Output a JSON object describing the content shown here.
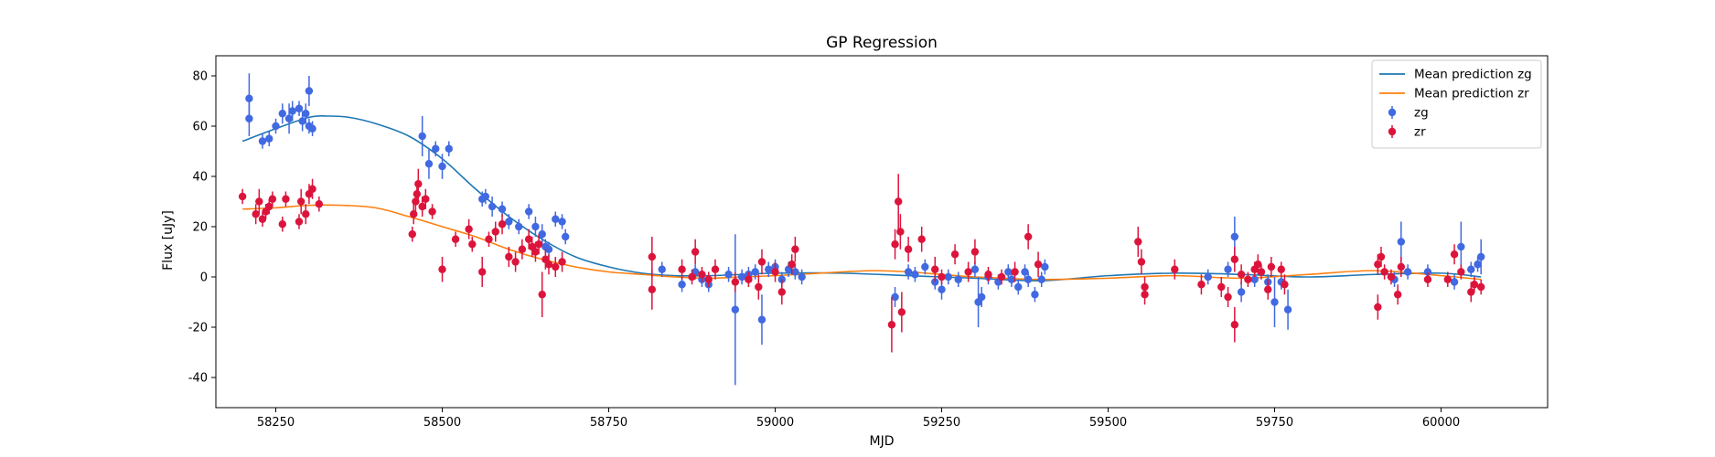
{
  "chart_data": {
    "type": "scatter",
    "title": "GP Regression",
    "xlabel": "MJD",
    "ylabel": "Flux [uJy]",
    "xlim": [
      58160,
      60160
    ],
    "ylim": [
      -52,
      88
    ],
    "xticks": [
      58250,
      58500,
      58750,
      59000,
      59250,
      59500,
      59750,
      60000
    ],
    "yticks": [
      -40,
      -20,
      0,
      20,
      40,
      60,
      80
    ],
    "grid": false,
    "legend_position": "top-right",
    "colors": {
      "mean_zg": "#1f77b4",
      "mean_zr": "#ff7f0e",
      "zg": "#4169e1",
      "zr": "#dc143c"
    },
    "legend": [
      {
        "label": "Mean prediction zg",
        "kind": "line",
        "color": "#1f77b4"
      },
      {
        "label": "Mean prediction zr",
        "kind": "line",
        "color": "#ff7f0e"
      },
      {
        "label": "zg",
        "kind": "errorbar",
        "color": "#4169e1"
      },
      {
        "label": "zr",
        "kind": "errorbar",
        "color": "#dc143c"
      }
    ],
    "lines": [
      {
        "name": "Mean prediction zg",
        "color": "#1f77b4",
        "x": [
          58200,
          58250,
          58300,
          58330,
          58360,
          58400,
          58450,
          58500,
          58550,
          58600,
          58650,
          58700,
          58750,
          58800,
          58850,
          58900,
          58950,
          59000,
          59100,
          59200,
          59300,
          59400,
          59500,
          59600,
          59700,
          59800,
          59900,
          60000,
          60060
        ],
        "y": [
          54,
          59,
          63.5,
          64,
          63.5,
          61,
          56,
          47,
          35,
          24,
          15,
          8,
          4,
          1.5,
          0.5,
          0.5,
          1,
          1.5,
          1.5,
          0.5,
          -0.5,
          -1.5,
          0.5,
          1.5,
          1,
          0,
          1,
          1.5,
          0
        ]
      },
      {
        "name": "Mean prediction zr",
        "color": "#ff7f0e",
        "x": [
          58200,
          58250,
          58300,
          58350,
          58400,
          58450,
          58500,
          58550,
          58600,
          58650,
          58700,
          58750,
          58800,
          58850,
          58900,
          58950,
          59000,
          59100,
          59150,
          59200,
          59250,
          59300,
          59400,
          59500,
          59600,
          59700,
          59800,
          59900,
          60000,
          60060
        ],
        "y": [
          27,
          27.5,
          28.5,
          28.5,
          27.5,
          24,
          20,
          16,
          11,
          7,
          4,
          2,
          1,
          0,
          -0.5,
          0,
          0.5,
          2,
          2.5,
          2,
          1,
          0,
          -1,
          -0.5,
          0.5,
          -0.5,
          1,
          2.5,
          0.5,
          -1
        ]
      }
    ],
    "series": [
      {
        "name": "zg",
        "color": "#4169e1",
        "points": [
          [
            58210,
            63,
            7
          ],
          [
            58210,
            71,
            10
          ],
          [
            58230,
            54,
            3
          ],
          [
            58240,
            55,
            3
          ],
          [
            58250,
            60,
            3
          ],
          [
            58260,
            65,
            4
          ],
          [
            58270,
            63,
            6
          ],
          [
            58275,
            66,
            4
          ],
          [
            58285,
            67,
            3
          ],
          [
            58290,
            62,
            4
          ],
          [
            58295,
            65,
            4
          ],
          [
            58300,
            60,
            3
          ],
          [
            58300,
            74,
            6
          ],
          [
            58305,
            59,
            3
          ],
          [
            58470,
            56,
            8
          ],
          [
            58480,
            45,
            6
          ],
          [
            58490,
            51,
            3
          ],
          [
            58500,
            44,
            5
          ],
          [
            58510,
            51,
            3
          ],
          [
            58560,
            31,
            3
          ],
          [
            58565,
            32,
            3
          ],
          [
            58575,
            28,
            4
          ],
          [
            58590,
            27,
            3
          ],
          [
            58600,
            22,
            3
          ],
          [
            58615,
            20,
            3
          ],
          [
            58630,
            26,
            3
          ],
          [
            58640,
            20,
            4
          ],
          [
            58650,
            17,
            4
          ],
          [
            58655,
            12,
            3
          ],
          [
            58660,
            11,
            3
          ],
          [
            58670,
            23,
            3
          ],
          [
            58680,
            22,
            3
          ],
          [
            58685,
            16,
            3
          ],
          [
            58830,
            3,
            3
          ],
          [
            58860,
            -3,
            3
          ],
          [
            58880,
            2,
            3
          ],
          [
            58890,
            -1,
            3
          ],
          [
            58900,
            -3,
            3
          ],
          [
            58930,
            1,
            3
          ],
          [
            58940,
            -13,
            30
          ],
          [
            58950,
            0,
            3
          ],
          [
            58960,
            1,
            3
          ],
          [
            58970,
            2,
            3
          ],
          [
            58980,
            -17,
            10
          ],
          [
            58990,
            3,
            3
          ],
          [
            59000,
            4,
            3
          ],
          [
            59010,
            -1,
            3
          ],
          [
            59020,
            3,
            3
          ],
          [
            59030,
            2,
            3
          ],
          [
            59040,
            0,
            3
          ],
          [
            59180,
            -8,
            4
          ],
          [
            59200,
            2,
            3
          ],
          [
            59210,
            1,
            3
          ],
          [
            59225,
            4,
            3
          ],
          [
            59240,
            -2,
            3
          ],
          [
            59250,
            -5,
            4
          ],
          [
            59260,
            0,
            3
          ],
          [
            59275,
            -1,
            3
          ],
          [
            59300,
            3,
            3
          ],
          [
            59305,
            -10,
            10
          ],
          [
            59310,
            -8,
            4
          ],
          [
            59320,
            0,
            3
          ],
          [
            59335,
            -2,
            3
          ],
          [
            59350,
            2,
            3
          ],
          [
            59355,
            -1,
            3
          ],
          [
            59365,
            -4,
            3
          ],
          [
            59375,
            2,
            3
          ],
          [
            59380,
            -1,
            3
          ],
          [
            59390,
            -7,
            3
          ],
          [
            59400,
            -1,
            3
          ],
          [
            59405,
            4,
            3
          ],
          [
            59650,
            0,
            3
          ],
          [
            59680,
            3,
            3
          ],
          [
            59690,
            16,
            8
          ],
          [
            59700,
            -6,
            4
          ],
          [
            59720,
            -1,
            3
          ],
          [
            59740,
            -2,
            3
          ],
          [
            59750,
            -10,
            10
          ],
          [
            59760,
            -2,
            3
          ],
          [
            59770,
            -13,
            8
          ],
          [
            59930,
            -1,
            3
          ],
          [
            59940,
            14,
            8
          ],
          [
            59950,
            2,
            3
          ],
          [
            59980,
            2,
            3
          ],
          [
            60020,
            -2,
            3
          ],
          [
            60030,
            12,
            10
          ],
          [
            60045,
            3,
            3
          ],
          [
            60055,
            5,
            3
          ],
          [
            60060,
            8,
            7
          ]
        ]
      },
      {
        "name": "zr",
        "color": "#dc143c",
        "points": [
          [
            58200,
            32,
            3
          ],
          [
            58220,
            25,
            4
          ],
          [
            58225,
            30,
            5
          ],
          [
            58230,
            23,
            3
          ],
          [
            58235,
            26,
            3
          ],
          [
            58240,
            28,
            3
          ],
          [
            58245,
            31,
            3
          ],
          [
            58260,
            21,
            3
          ],
          [
            58265,
            31,
            3
          ],
          [
            58285,
            22,
            3
          ],
          [
            58288,
            30,
            5
          ],
          [
            58295,
            25,
            4
          ],
          [
            58300,
            33,
            4
          ],
          [
            58305,
            35,
            4
          ],
          [
            58315,
            29,
            3
          ],
          [
            58455,
            17,
            3
          ],
          [
            58457,
            25,
            4
          ],
          [
            58460,
            30,
            4
          ],
          [
            58462,
            33,
            4
          ],
          [
            58464,
            37,
            6
          ],
          [
            58470,
            28,
            4
          ],
          [
            58475,
            31,
            4
          ],
          [
            58485,
            26,
            3
          ],
          [
            58500,
            3,
            5
          ],
          [
            58520,
            15,
            3
          ],
          [
            58540,
            19,
            4
          ],
          [
            58545,
            13,
            3
          ],
          [
            58560,
            2,
            6
          ],
          [
            58570,
            15,
            3
          ],
          [
            58580,
            18,
            4
          ],
          [
            58590,
            21,
            4
          ],
          [
            58600,
            8,
            4
          ],
          [
            58610,
            6,
            4
          ],
          [
            58620,
            11,
            4
          ],
          [
            58630,
            15,
            4
          ],
          [
            58635,
            12,
            4
          ],
          [
            58640,
            10,
            4
          ],
          [
            58645,
            13,
            4
          ],
          [
            58650,
            -7,
            9
          ],
          [
            58655,
            7,
            4
          ],
          [
            58660,
            5,
            4
          ],
          [
            58670,
            4,
            4
          ],
          [
            58680,
            6,
            4
          ],
          [
            58815,
            -5,
            8
          ],
          [
            58815,
            8,
            8
          ],
          [
            58860,
            3,
            4
          ],
          [
            58875,
            0,
            3
          ],
          [
            58880,
            10,
            5
          ],
          [
            58890,
            1,
            3
          ],
          [
            58900,
            -1,
            3
          ],
          [
            58910,
            3,
            4
          ],
          [
            58940,
            -2,
            4
          ],
          [
            58960,
            -1,
            3
          ],
          [
            58975,
            -4,
            5
          ],
          [
            58980,
            6,
            5
          ],
          [
            59000,
            2,
            4
          ],
          [
            59010,
            -6,
            5
          ],
          [
            59025,
            5,
            4
          ],
          [
            59030,
            11,
            5
          ],
          [
            59175,
            -19,
            11
          ],
          [
            59180,
            13,
            6
          ],
          [
            59185,
            30,
            11
          ],
          [
            59188,
            18,
            7
          ],
          [
            59190,
            -14,
            8
          ],
          [
            59200,
            11,
            5
          ],
          [
            59220,
            15,
            5
          ],
          [
            59240,
            3,
            5
          ],
          [
            59250,
            0,
            3
          ],
          [
            59270,
            9,
            4
          ],
          [
            59290,
            2,
            4
          ],
          [
            59300,
            10,
            5
          ],
          [
            59320,
            1,
            3
          ],
          [
            59340,
            0,
            3
          ],
          [
            59360,
            2,
            4
          ],
          [
            59380,
            16,
            5
          ],
          [
            59395,
            5,
            5
          ],
          [
            59545,
            14,
            6
          ],
          [
            59550,
            6,
            5
          ],
          [
            59555,
            -4,
            4
          ],
          [
            59555,
            -7,
            4
          ],
          [
            59600,
            3,
            4
          ],
          [
            59640,
            -3,
            4
          ],
          [
            59670,
            -4,
            4
          ],
          [
            59680,
            -8,
            4
          ],
          [
            59690,
            -19,
            7
          ],
          [
            59690,
            7,
            5
          ],
          [
            59700,
            1,
            4
          ],
          [
            59710,
            -1,
            3
          ],
          [
            59720,
            3,
            3
          ],
          [
            59725,
            5,
            4
          ],
          [
            59730,
            2,
            3
          ],
          [
            59740,
            -5,
            4
          ],
          [
            59745,
            4,
            4
          ],
          [
            59760,
            3,
            3
          ],
          [
            59765,
            -3,
            4
          ],
          [
            59905,
            -12,
            5
          ],
          [
            59905,
            5,
            4
          ],
          [
            59910,
            8,
            4
          ],
          [
            59915,
            2,
            3
          ],
          [
            59925,
            0,
            3
          ],
          [
            59935,
            -7,
            4
          ],
          [
            59940,
            4,
            4
          ],
          [
            59980,
            -1,
            3
          ],
          [
            60010,
            -1,
            3
          ],
          [
            60020,
            9,
            4
          ],
          [
            60030,
            2,
            3
          ],
          [
            60045,
            -6,
            4
          ],
          [
            60050,
            -3,
            3
          ],
          [
            60060,
            -4,
            3
          ]
        ]
      }
    ]
  }
}
